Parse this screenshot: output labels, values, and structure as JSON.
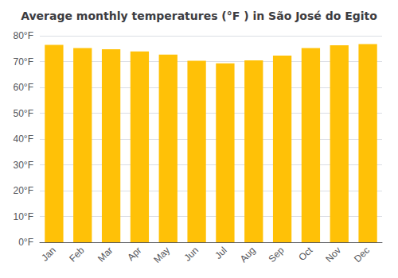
{
  "chart_data": {
    "type": "bar",
    "title": "Average monthly temperatures (°F ) in São José do Egito",
    "categories": [
      "Jan",
      "Feb",
      "Mar",
      "Apr",
      "May",
      "Jun",
      "Jul",
      "Aug",
      "Sep",
      "Oct",
      "Nov",
      "Dec"
    ],
    "values": [
      76.5,
      75.2,
      74.8,
      73.9,
      72.7,
      70.3,
      69.3,
      70.5,
      72.3,
      75.2,
      76.3,
      76.8
    ],
    "color": "#FFC107",
    "ylim": [
      0,
      80
    ],
    "yticks": [
      {
        "value": 0,
        "label": "0°F"
      },
      {
        "value": 10,
        "label": "10°F"
      },
      {
        "value": 20,
        "label": "20°F"
      },
      {
        "value": 30,
        "label": "30°F"
      },
      {
        "value": 40,
        "label": "40°F"
      },
      {
        "value": 50,
        "label": "50°F"
      },
      {
        "value": 60,
        "label": "60°F"
      },
      {
        "value": 70,
        "label": "70°F"
      },
      {
        "value": 80,
        "label": "80°F"
      }
    ],
    "grid": true
  }
}
